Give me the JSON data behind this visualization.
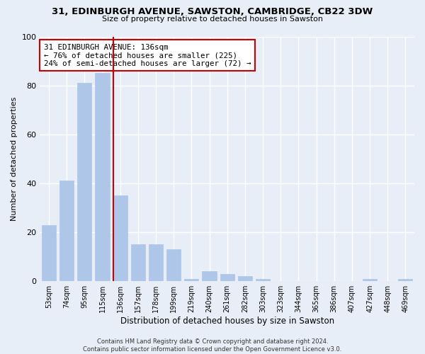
{
  "title": "31, EDINBURGH AVENUE, SAWSTON, CAMBRIDGE, CB22 3DW",
  "subtitle": "Size of property relative to detached houses in Sawston",
  "xlabel": "Distribution of detached houses by size in Sawston",
  "ylabel": "Number of detached properties",
  "categories": [
    "53sqm",
    "74sqm",
    "95sqm",
    "115sqm",
    "136sqm",
    "157sqm",
    "178sqm",
    "199sqm",
    "219sqm",
    "240sqm",
    "261sqm",
    "282sqm",
    "303sqm",
    "323sqm",
    "344sqm",
    "365sqm",
    "386sqm",
    "407sqm",
    "427sqm",
    "448sqm",
    "469sqm"
  ],
  "values": [
    23,
    41,
    81,
    85,
    35,
    15,
    15,
    13,
    1,
    4,
    3,
    2,
    1,
    0,
    0,
    0,
    0,
    0,
    1,
    0,
    1
  ],
  "bar_color": "#aec6e8",
  "bar_edge_color": "#aec6e8",
  "highlight_index": 4,
  "highlight_line_color": "#cc0000",
  "annotation_text": "31 EDINBURGH AVENUE: 136sqm\n← 76% of detached houses are smaller (225)\n24% of semi-detached houses are larger (72) →",
  "annotation_box_color": "white",
  "annotation_box_edge_color": "#cc0000",
  "background_color": "#e8eef8",
  "grid_color": "white",
  "ylim": [
    0,
    100
  ],
  "footnote": "Contains HM Land Registry data © Crown copyright and database right 2024.\nContains public sector information licensed under the Open Government Licence v3.0."
}
